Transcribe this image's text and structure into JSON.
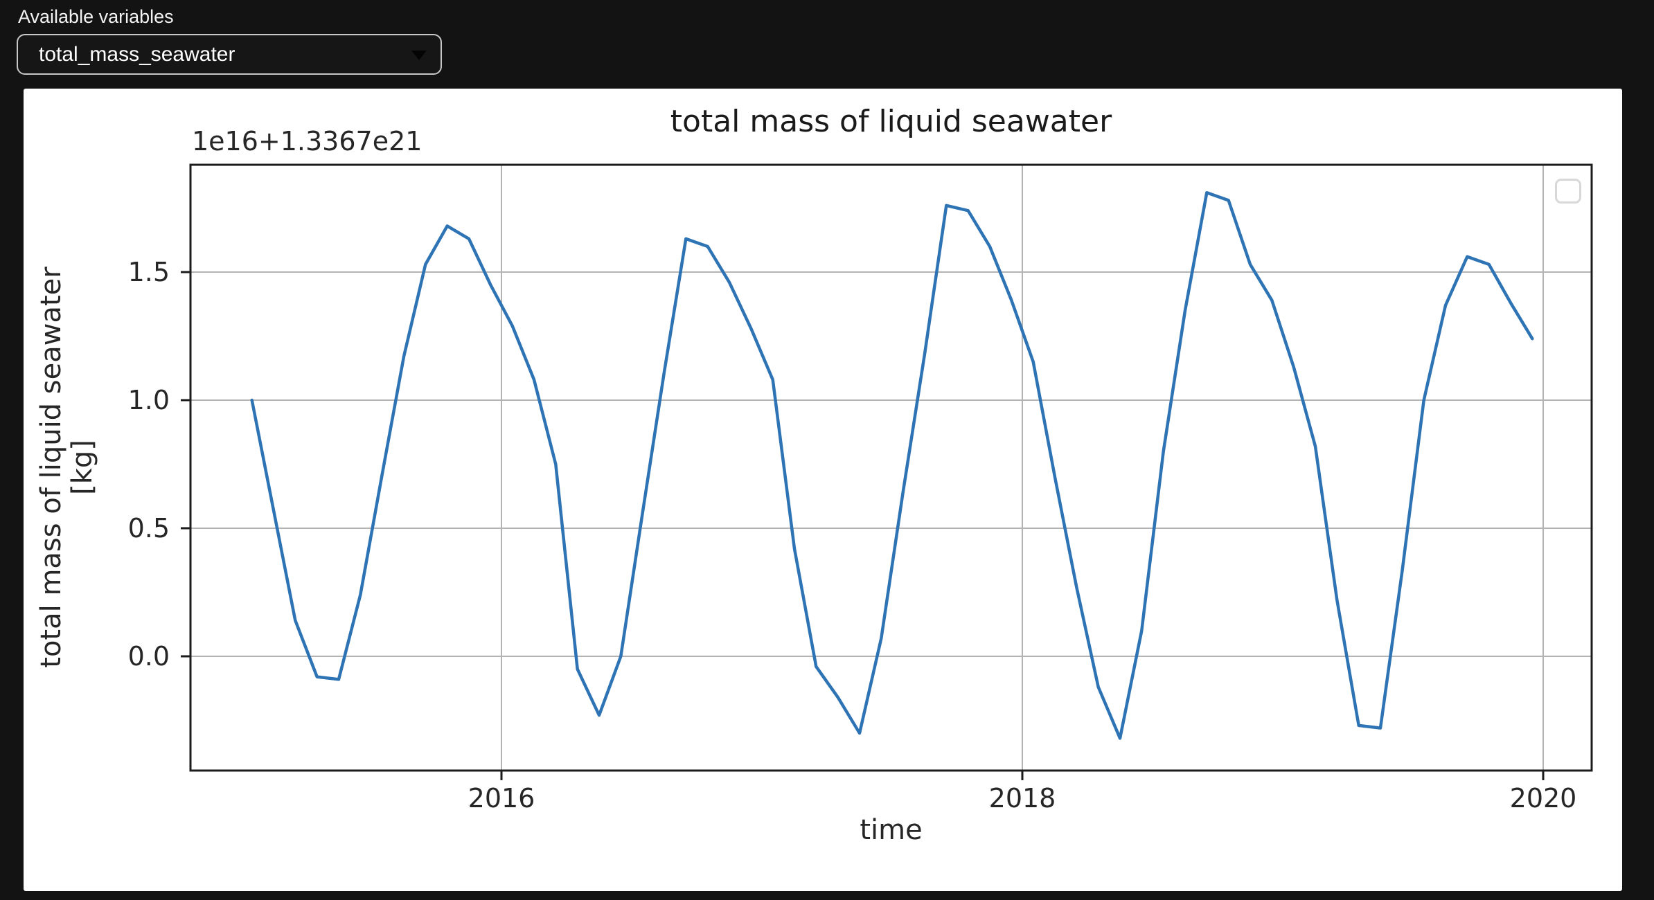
{
  "controls": {
    "label": "Available variables",
    "select": {
      "value": "total_mass_seawater",
      "options": [
        "total_mass_seawater"
      ]
    }
  },
  "chart": {
    "title": "total mass of liquid seawater",
    "offset_text": "1e16+1.3367e21",
    "xlabel": "time",
    "ylabel_line1": "total mass of liquid seawater",
    "ylabel_line2": "[kg]",
    "line_color": "#2e74b5",
    "grid_color": "#b3b3b3",
    "spine_color": "#1c1c1c",
    "xticks": [
      {
        "label": "2016",
        "value": 2016
      },
      {
        "label": "2018",
        "value": 2018
      },
      {
        "label": "2020",
        "value": 2020
      }
    ],
    "yticks": [
      {
        "label": "0.0",
        "value": 0.0
      },
      {
        "label": "0.5",
        "value": 0.5
      },
      {
        "label": "1.0",
        "value": 1.0
      },
      {
        "label": "1.5",
        "value": 1.5
      }
    ],
    "legend": {
      "visible": true,
      "entries": []
    }
  },
  "chart_data": {
    "type": "line",
    "series_name": "total_mass_seawater",
    "title": "total mass of liquid seawater",
    "xlabel": "time",
    "ylabel": "total mass of liquid seawater [kg]",
    "y_offset_base": "1.3367e21",
    "y_unit_scale": "1e16",
    "xlim": [
      2014.81,
      2020.19
    ],
    "ylim": [
      -0.45,
      1.92
    ],
    "grid": true,
    "legend_position": "upper right",
    "x": [
      "2015-01",
      "2015-02",
      "2015-03",
      "2015-04",
      "2015-05",
      "2015-06",
      "2015-07",
      "2015-08",
      "2015-09",
      "2015-10",
      "2015-11",
      "2015-12",
      "2016-01",
      "2016-02",
      "2016-03",
      "2016-04",
      "2016-05",
      "2016-06",
      "2016-07",
      "2016-08",
      "2016-09",
      "2016-10",
      "2016-11",
      "2016-12",
      "2017-01",
      "2017-02",
      "2017-03",
      "2017-04",
      "2017-05",
      "2017-06",
      "2017-07",
      "2017-08",
      "2017-09",
      "2017-10",
      "2017-11",
      "2017-12",
      "2018-01",
      "2018-02",
      "2018-03",
      "2018-04",
      "2018-05",
      "2018-06",
      "2018-07",
      "2018-08",
      "2018-09",
      "2018-10",
      "2018-11",
      "2018-12",
      "2019-01",
      "2019-02",
      "2019-03",
      "2019-04",
      "2019-05",
      "2019-06",
      "2019-07",
      "2019-08",
      "2019-09",
      "2019-10",
      "2019-11",
      "2019-12"
    ],
    "values": [
      1.0,
      0.57,
      0.14,
      -0.08,
      -0.09,
      0.24,
      0.71,
      1.17,
      1.53,
      1.68,
      1.63,
      1.45,
      1.29,
      1.08,
      0.75,
      -0.05,
      -0.23,
      0.0,
      0.56,
      1.11,
      1.63,
      1.6,
      1.46,
      1.28,
      1.08,
      0.42,
      -0.04,
      -0.16,
      -0.3,
      0.07,
      0.64,
      1.18,
      1.76,
      1.74,
      1.6,
      1.39,
      1.15,
      0.7,
      0.27,
      -0.12,
      -0.32,
      0.1,
      0.8,
      1.35,
      1.81,
      1.78,
      1.53,
      1.39,
      1.13,
      0.82,
      0.22,
      -0.27,
      -0.28,
      0.33,
      1.0,
      1.37,
      1.56,
      1.53,
      1.38,
      1.24
    ]
  }
}
